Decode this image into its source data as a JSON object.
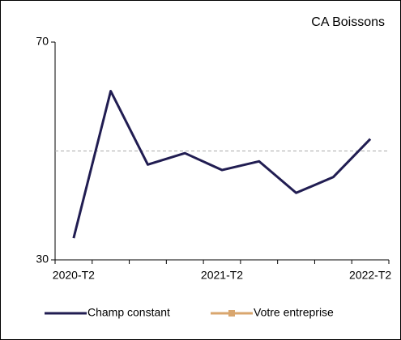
{
  "chart_data": {
    "type": "line",
    "title": "CA Boissons",
    "categories": [
      "2020-T2",
      null,
      null,
      null,
      "2021-T2",
      null,
      null,
      null,
      "2022-T2"
    ],
    "series": [
      {
        "name": "Champ constant",
        "color": "#211d52",
        "values": [
          34,
          61,
          47.5,
          49.6,
          46.5,
          48.1,
          42.3,
          45.2,
          52.2
        ]
      },
      {
        "name": "Votre entreprise",
        "color": "#d9a66e",
        "values": [
          null,
          null,
          null,
          null,
          null,
          null,
          null,
          null,
          null
        ]
      }
    ],
    "ylim": [
      30,
      70
    ],
    "yticks": [
      30,
      70
    ],
    "reference_line": 50,
    "legend": "bottom"
  }
}
